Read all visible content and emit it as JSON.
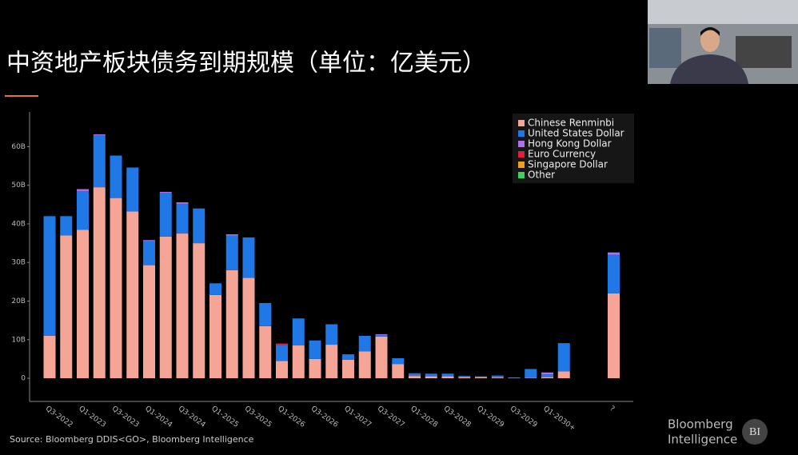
{
  "title": "中资地产板块债务到期规模（单位：亿美元）",
  "source": "Source: Bloomberg DDIS<GO>, Bloomberg Intelligence",
  "logo": {
    "line1": "Bloomberg",
    "line2": "Intelligence",
    "badge": "BI"
  },
  "chart_data": {
    "type": "stacked_bar",
    "categories": [
      "Q3-2022",
      null,
      "Q1-2023",
      null,
      "Q3-2023",
      null,
      "Q1-2024",
      null,
      "Q3-2024",
      null,
      "Q1-2025",
      null,
      "Q3-2025",
      null,
      "Q1-2026",
      null,
      "Q3-2026",
      null,
      "Q1-2027",
      null,
      "Q3-2027",
      null,
      "Q1-2028",
      null,
      "Q3-2028",
      null,
      "Q1-2029",
      null,
      "Q3-2029",
      null,
      "Q1-2030+",
      null,
      null,
      null,
      "?"
    ],
    "series": [
      {
        "name": "Chinese Renminbi",
        "color": "#f4a595",
        "values": [
          11,
          37,
          38.5,
          49.5,
          46.7,
          43.2,
          29.3,
          36.7,
          37.5,
          35,
          21.6,
          28,
          26,
          13.5,
          4.5,
          8.5,
          5,
          8.7,
          4.8,
          7,
          10.8,
          3.7,
          0.6,
          0.5,
          0.5,
          0.3,
          0.3,
          0.2,
          0.1,
          0.1,
          0.3,
          1.8,
          null,
          null,
          22
        ]
      },
      {
        "name": "United States Dollar",
        "color": "#1f78e6",
        "values": [
          31,
          5,
          10,
          13.5,
          11,
          11.4,
          6.2,
          11.3,
          7.7,
          9,
          3,
          9,
          10.5,
          6,
          4,
          7,
          4.8,
          5.3,
          1.4,
          4,
          0.4,
          1.5,
          0.7,
          0.7,
          0.7,
          0.3,
          0.2,
          0.5,
          0.1,
          2.3,
          0.7,
          7.3,
          null,
          null,
          10
        ]
      },
      {
        "name": "Hong Kong Dollar",
        "color": "#b06ef0",
        "values": [
          0,
          0,
          0.5,
          0.2,
          0,
          0,
          0.3,
          0.3,
          0.4,
          0,
          0,
          0.3,
          0,
          0,
          0,
          0,
          0,
          0,
          0,
          0,
          0.2,
          0,
          0,
          0,
          0,
          0,
          0,
          0,
          0,
          0,
          0.5,
          0,
          null,
          null,
          0.6
        ]
      },
      {
        "name": "Euro Currency",
        "color": "#e0203a",
        "values": [
          0,
          0,
          0,
          0,
          0,
          0,
          0,
          0,
          0,
          0,
          0,
          0,
          0,
          0,
          0.5,
          0,
          0,
          0,
          0,
          0,
          0,
          0,
          0,
          0,
          0,
          0,
          0,
          0,
          0,
          0,
          0,
          0,
          null,
          null,
          0
        ]
      },
      {
        "name": "Singapore Dollar",
        "color": "#f0a020",
        "values": [
          0,
          0,
          0,
          0,
          0,
          0,
          0,
          0,
          0,
          0,
          0,
          0,
          0,
          0,
          0,
          0,
          0,
          0,
          0,
          0,
          0,
          0,
          0,
          0,
          0,
          0,
          0,
          0,
          0,
          0,
          0,
          0,
          null,
          null,
          0
        ]
      },
      {
        "name": "Other",
        "color": "#40d060",
        "values": [
          0,
          0,
          0,
          0,
          0,
          0,
          0,
          0,
          0,
          0,
          0,
          0,
          0,
          0,
          0,
          0,
          0,
          0,
          0,
          0,
          0,
          0,
          0,
          0,
          0,
          0,
          0,
          0,
          0,
          0,
          0,
          0,
          null,
          null,
          0
        ]
      }
    ],
    "ylim": [
      -6,
      69
    ],
    "yticks": [
      0,
      {
        "value": 10,
        "label": "10B"
      },
      {
        "value": 20,
        "label": "20B"
      },
      {
        "value": 30,
        "label": "30B"
      },
      {
        "value": 40,
        "label": "40B"
      },
      {
        "value": 50,
        "label": "50B"
      },
      {
        "value": 60,
        "label": "60B"
      }
    ],
    "legend": "upper right"
  }
}
